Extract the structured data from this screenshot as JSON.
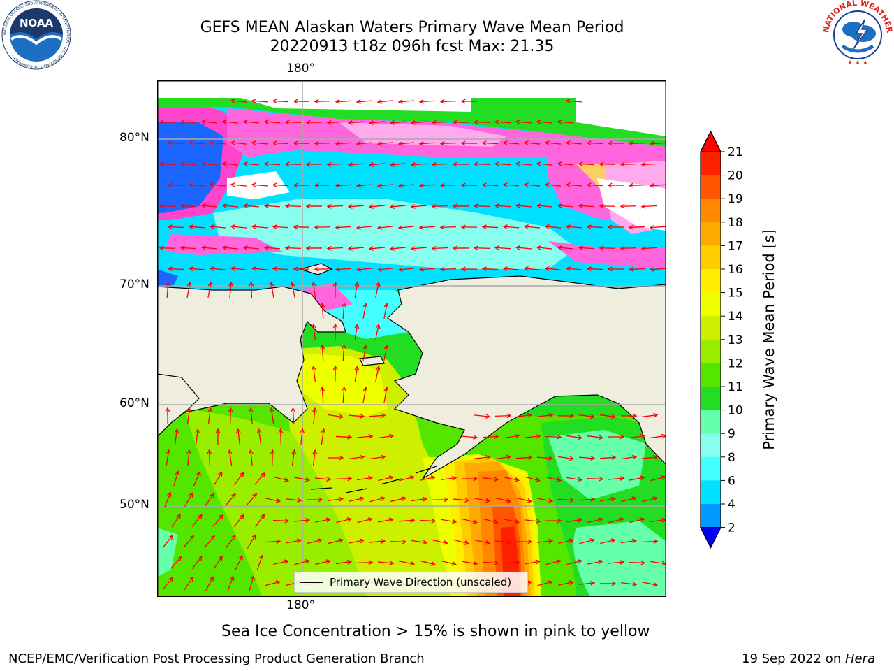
{
  "title_line1": "GEFS MEAN Alaskan Waters Primary Wave Mean Period",
  "title_line2": "20220913 t18z 096h fcst   Max: 21.35",
  "lon_label_top": "180°",
  "lon_label_bottom": "180°",
  "lat_labels": [
    "80°N",
    "70°N",
    "60°N",
    "50°N"
  ],
  "legend_label": "Primary Wave Direction (unscaled)",
  "colorbar": {
    "label": "Primary Wave Mean Period [s]",
    "ticks": [
      "21",
      "20",
      "19",
      "18",
      "17",
      "16",
      "15",
      "14",
      "13",
      "12",
      "11",
      "10",
      "9",
      "8",
      "6",
      "4",
      "2"
    ],
    "colors": [
      "#ff2200",
      "#ff5500",
      "#ff8800",
      "#ffaa00",
      "#ffcc00",
      "#ffee00",
      "#eeff00",
      "#ccf000",
      "#99ee00",
      "#55e600",
      "#22dd22",
      "#66ffaa",
      "#88ffee",
      "#44ffff",
      "#00e0ff",
      "#0099ff",
      "#0055ff"
    ],
    "min_extend_color": "#0000ff",
    "max_extend_color": "#ff0000"
  },
  "colors": {
    "land": "#efedde",
    "sea_ice_white": "#ffffff",
    "arrow": "#ff0000",
    "grid": "#aaaaaa"
  },
  "caption": "Sea Ice Concentration > 15% is shown in pink to yellow",
  "footer_left": "NCEP/EMC/Verification Post Processing Product Generation Branch",
  "footer_right_date": "19 Sep 2022 on ",
  "footer_right_host": "Hera",
  "noaa_logo_text": "NOAA",
  "noaa_ring_text": "NATIONAL OCEANIC AND ATMOSPHERIC ADMINISTRATION · U.S. DEPARTMENT OF COMMERCE ·",
  "nws_ring_text": "NATIONAL WEATHER SERVICE"
}
